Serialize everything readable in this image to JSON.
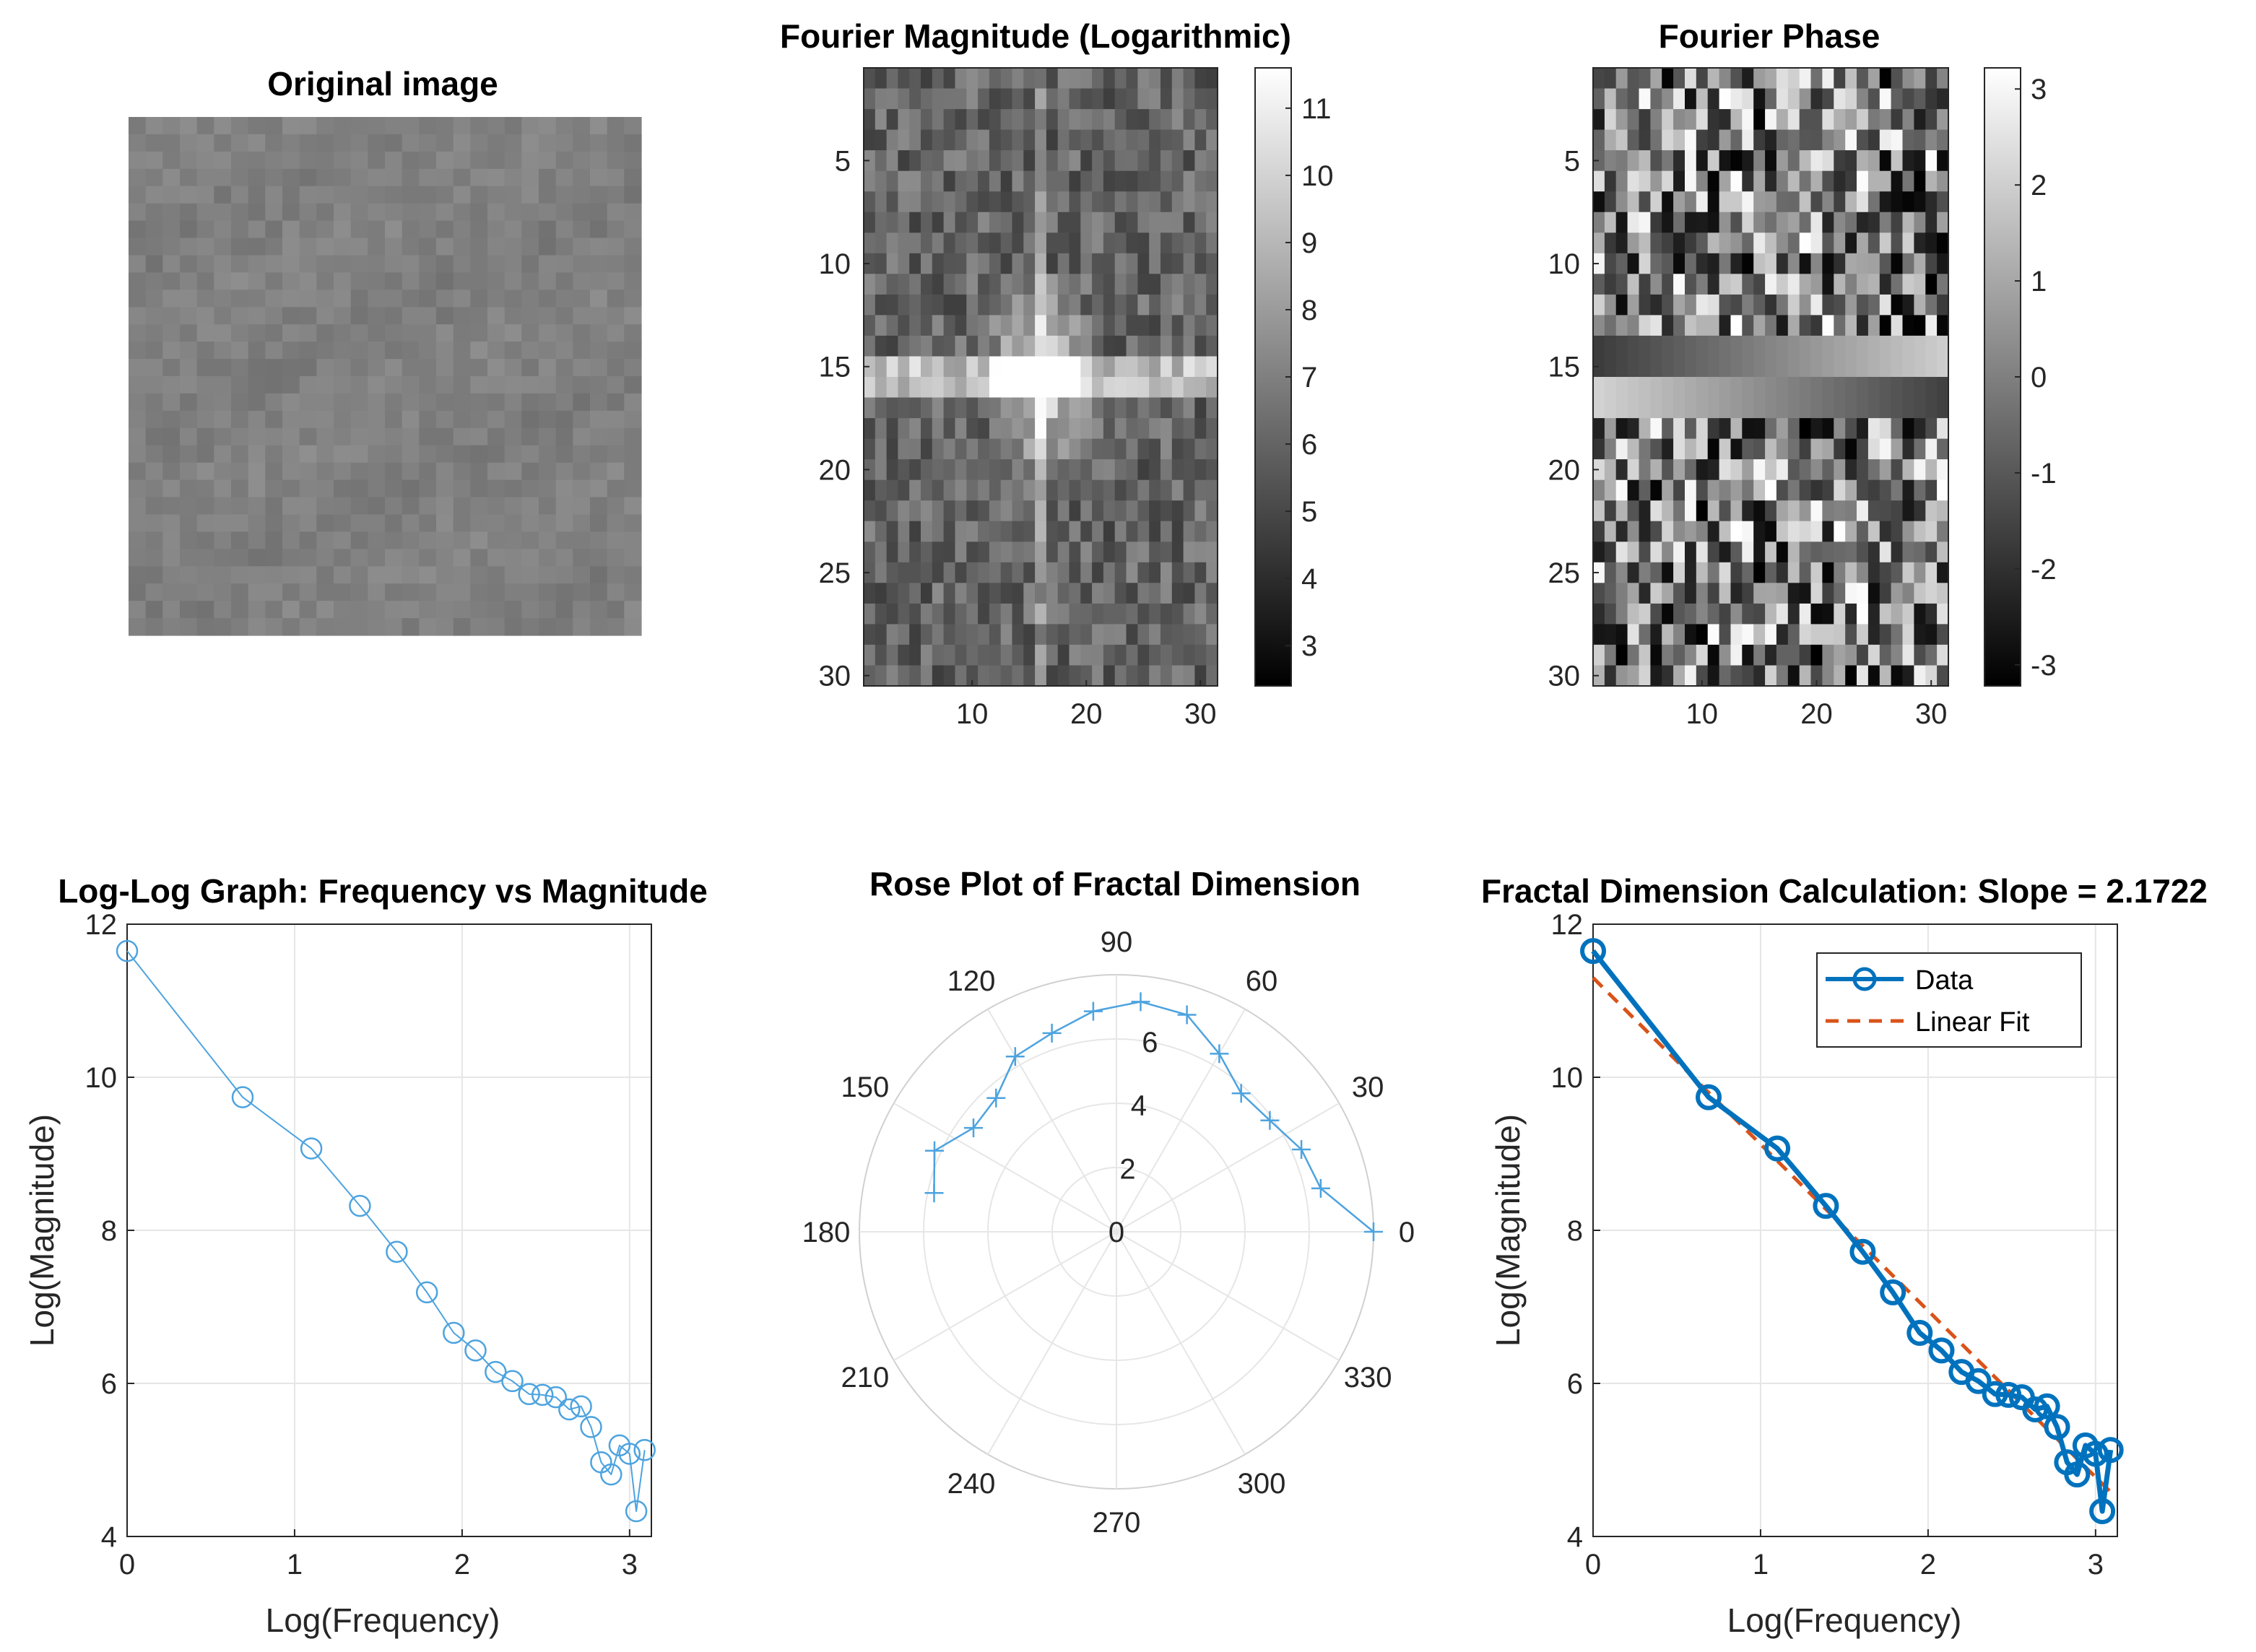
{
  "colors": {
    "data_line": "#0072BD",
    "fit_line": "#D95319",
    "light_line": "#4DA3DF",
    "grid": "#E6E6E6",
    "axis": "#262626"
  },
  "image_panels": {
    "original": {
      "title": "Original image"
    },
    "magnitude": {
      "title": "Fourier Magnitude (Logarithmic)",
      "yticks": [
        "5",
        "10",
        "15",
        "20",
        "25",
        "30"
      ],
      "xticks": [
        "10",
        "20",
        "30"
      ],
      "colorbar_ticks": [
        "3",
        "4",
        "5",
        "6",
        "7",
        "8",
        "9",
        "10",
        "11"
      ]
    },
    "phase": {
      "title": "Fourier Phase",
      "yticks": [
        "5",
        "10",
        "15",
        "20",
        "25",
        "30"
      ],
      "xticks": [
        "10",
        "20",
        "30"
      ],
      "colorbar_ticks": [
        "-3",
        "-2",
        "-1",
        "0",
        "1",
        "2",
        "3"
      ]
    }
  },
  "chart_data": [
    {
      "type": "line",
      "title": "Log-Log Graph: Frequency vs Magnitude",
      "xlabel": "Log(Frequency)",
      "ylabel": "Log(Magnitude)",
      "xlim": [
        0,
        3.13
      ],
      "ylim": [
        4,
        12
      ],
      "xticks": [
        0,
        1,
        2,
        3
      ],
      "yticks": [
        4,
        6,
        8,
        10,
        12
      ],
      "grid": true,
      "x": [
        0,
        0.69,
        1.1,
        1.39,
        1.61,
        1.79,
        1.95,
        2.08,
        2.2,
        2.3,
        2.4,
        2.48,
        2.56,
        2.64,
        2.71,
        2.77,
        2.83,
        2.89,
        2.94,
        3.0,
        3.04,
        3.09
      ],
      "y": [
        11.65,
        9.74,
        9.07,
        8.32,
        7.72,
        7.19,
        6.66,
        6.43,
        6.15,
        6.03,
        5.86,
        5.85,
        5.82,
        5.66,
        5.7,
        5.43,
        4.97,
        4.81,
        5.19,
        5.08,
        4.33,
        5.13
      ]
    },
    {
      "type": "polar",
      "title": "Rose Plot of Fractal Dimension",
      "theta_deg": [
        0,
        12,
        24,
        36,
        48,
        60,
        72,
        84,
        96,
        108,
        120,
        132,
        144,
        156,
        168
      ],
      "r": [
        8.0,
        6.5,
        6.3,
        5.9,
        5.8,
        6.4,
        7.1,
        7.2,
        6.9,
        6.5,
        6.3,
        5.6,
        5.5,
        6.2,
        5.8
      ],
      "rlim": [
        0,
        8
      ],
      "r_ticks": [
        "0",
        "2",
        "4",
        "6"
      ],
      "theta_ticks": [
        "0",
        "30",
        "60",
        "90",
        "120",
        "150",
        "180",
        "210",
        "240",
        "270",
        "300",
        "330"
      ]
    },
    {
      "type": "line",
      "title": "Fractal Dimension Calculation: Slope = 2.1722",
      "xlabel": "Log(Frequency)",
      "ylabel": "Log(Magnitude)",
      "xlim": [
        0,
        3.13
      ],
      "ylim": [
        4,
        12
      ],
      "xticks": [
        0,
        1,
        2,
        3
      ],
      "yticks": [
        4,
        6,
        8,
        10,
        12
      ],
      "grid": true,
      "legend": [
        "Data",
        "Linear Fit"
      ],
      "legend_location": "top-right",
      "series": [
        {
          "name": "Data",
          "x": [
            0,
            0.69,
            1.1,
            1.39,
            1.61,
            1.79,
            1.95,
            2.08,
            2.2,
            2.3,
            2.4,
            2.48,
            2.56,
            2.64,
            2.71,
            2.77,
            2.83,
            2.89,
            2.94,
            3.0,
            3.04,
            3.09
          ],
          "y": [
            11.65,
            9.74,
            9.07,
            8.32,
            7.72,
            7.19,
            6.66,
            6.43,
            6.15,
            6.03,
            5.86,
            5.85,
            5.82,
            5.66,
            5.7,
            5.43,
            4.97,
            4.81,
            5.19,
            5.08,
            4.33,
            5.13
          ]
        },
        {
          "name": "Linear Fit",
          "x": [
            0,
            3.09
          ],
          "y": [
            11.3,
            4.58
          ]
        }
      ]
    }
  ]
}
